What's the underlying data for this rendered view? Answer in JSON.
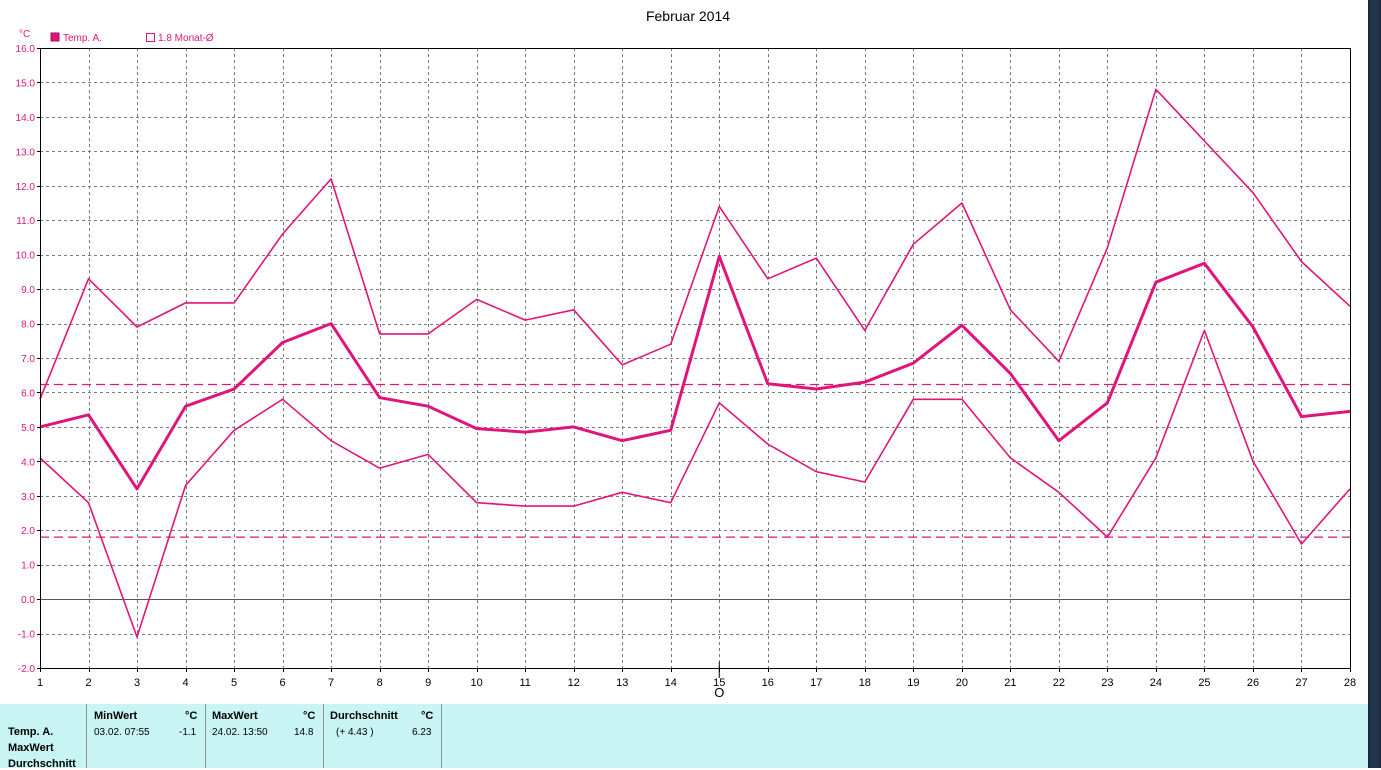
{
  "chart_data": {
    "type": "line",
    "title": "Februar 2014",
    "yunit": "°C",
    "ylim": [
      -2.0,
      16.0
    ],
    "ystep": 1.0,
    "x": [
      1,
      2,
      3,
      4,
      5,
      6,
      7,
      8,
      9,
      10,
      11,
      12,
      13,
      14,
      15,
      16,
      17,
      18,
      19,
      20,
      21,
      22,
      23,
      24,
      25,
      26,
      27,
      28
    ],
    "grid": true,
    "legend_placement": "top-left",
    "legend": [
      {
        "label": "Temp. A.",
        "symbol": "filled-square"
      },
      {
        "label": "1.8 Monat-Ø",
        "symbol": "hollow-square"
      }
    ],
    "series": [
      {
        "role": "max",
        "color": "#e0157a",
        "stroke": "thin",
        "values": [
          5.8,
          9.3,
          7.9,
          8.6,
          8.6,
          10.6,
          12.2,
          7.7,
          7.7,
          8.7,
          8.1,
          8.4,
          6.8,
          7.4,
          11.4,
          9.3,
          9.9,
          7.8,
          10.3,
          11.5,
          8.4,
          6.9,
          10.2,
          14.8,
          13.3,
          11.8,
          9.8,
          8.5
        ]
      },
      {
        "name": "Temp. A.",
        "role": "mean",
        "color": "#e0157a",
        "stroke": "thick",
        "values": [
          5.0,
          5.35,
          3.2,
          5.6,
          6.1,
          7.45,
          8.0,
          5.85,
          5.6,
          4.95,
          4.85,
          5.0,
          4.6,
          4.9,
          9.95,
          6.25,
          6.1,
          6.3,
          6.85,
          7.95,
          6.55,
          4.6,
          5.7,
          9.2,
          9.75,
          7.9,
          5.3,
          5.45
        ]
      },
      {
        "role": "min",
        "color": "#e0157a",
        "stroke": "thin",
        "values": [
          4.1,
          2.8,
          -1.1,
          3.3,
          4.9,
          5.8,
          4.6,
          3.8,
          4.2,
          2.8,
          2.7,
          2.7,
          3.1,
          2.8,
          5.7,
          4.5,
          3.7,
          3.4,
          5.8,
          5.8,
          4.1,
          3.1,
          1.8,
          4.1,
          7.8,
          4.0,
          1.6,
          3.2
        ]
      }
    ],
    "reference_lines": [
      {
        "value": 6.23,
        "style": "dashed",
        "color": "#e0157a"
      },
      {
        "value": 1.8,
        "style": "dashed",
        "color": "#e0157a"
      }
    ],
    "x_marker": {
      "x": 15,
      "symbol": "O"
    }
  },
  "stats": {
    "row_labels": [
      "Temp. A.",
      "MaxWert",
      "Durchschnitt"
    ],
    "min": {
      "header": "MinWert",
      "unit": "°C",
      "datetime": "03.02.  07:55",
      "value": "-1.1"
    },
    "max": {
      "header": "MaxWert",
      "unit": "°C",
      "datetime": "24.02.  13:50",
      "value": "14.8"
    },
    "avg": {
      "header": "Durchschnitt",
      "unit": "°C",
      "delta": "(+ 4.43 )",
      "value": "6.23"
    }
  }
}
